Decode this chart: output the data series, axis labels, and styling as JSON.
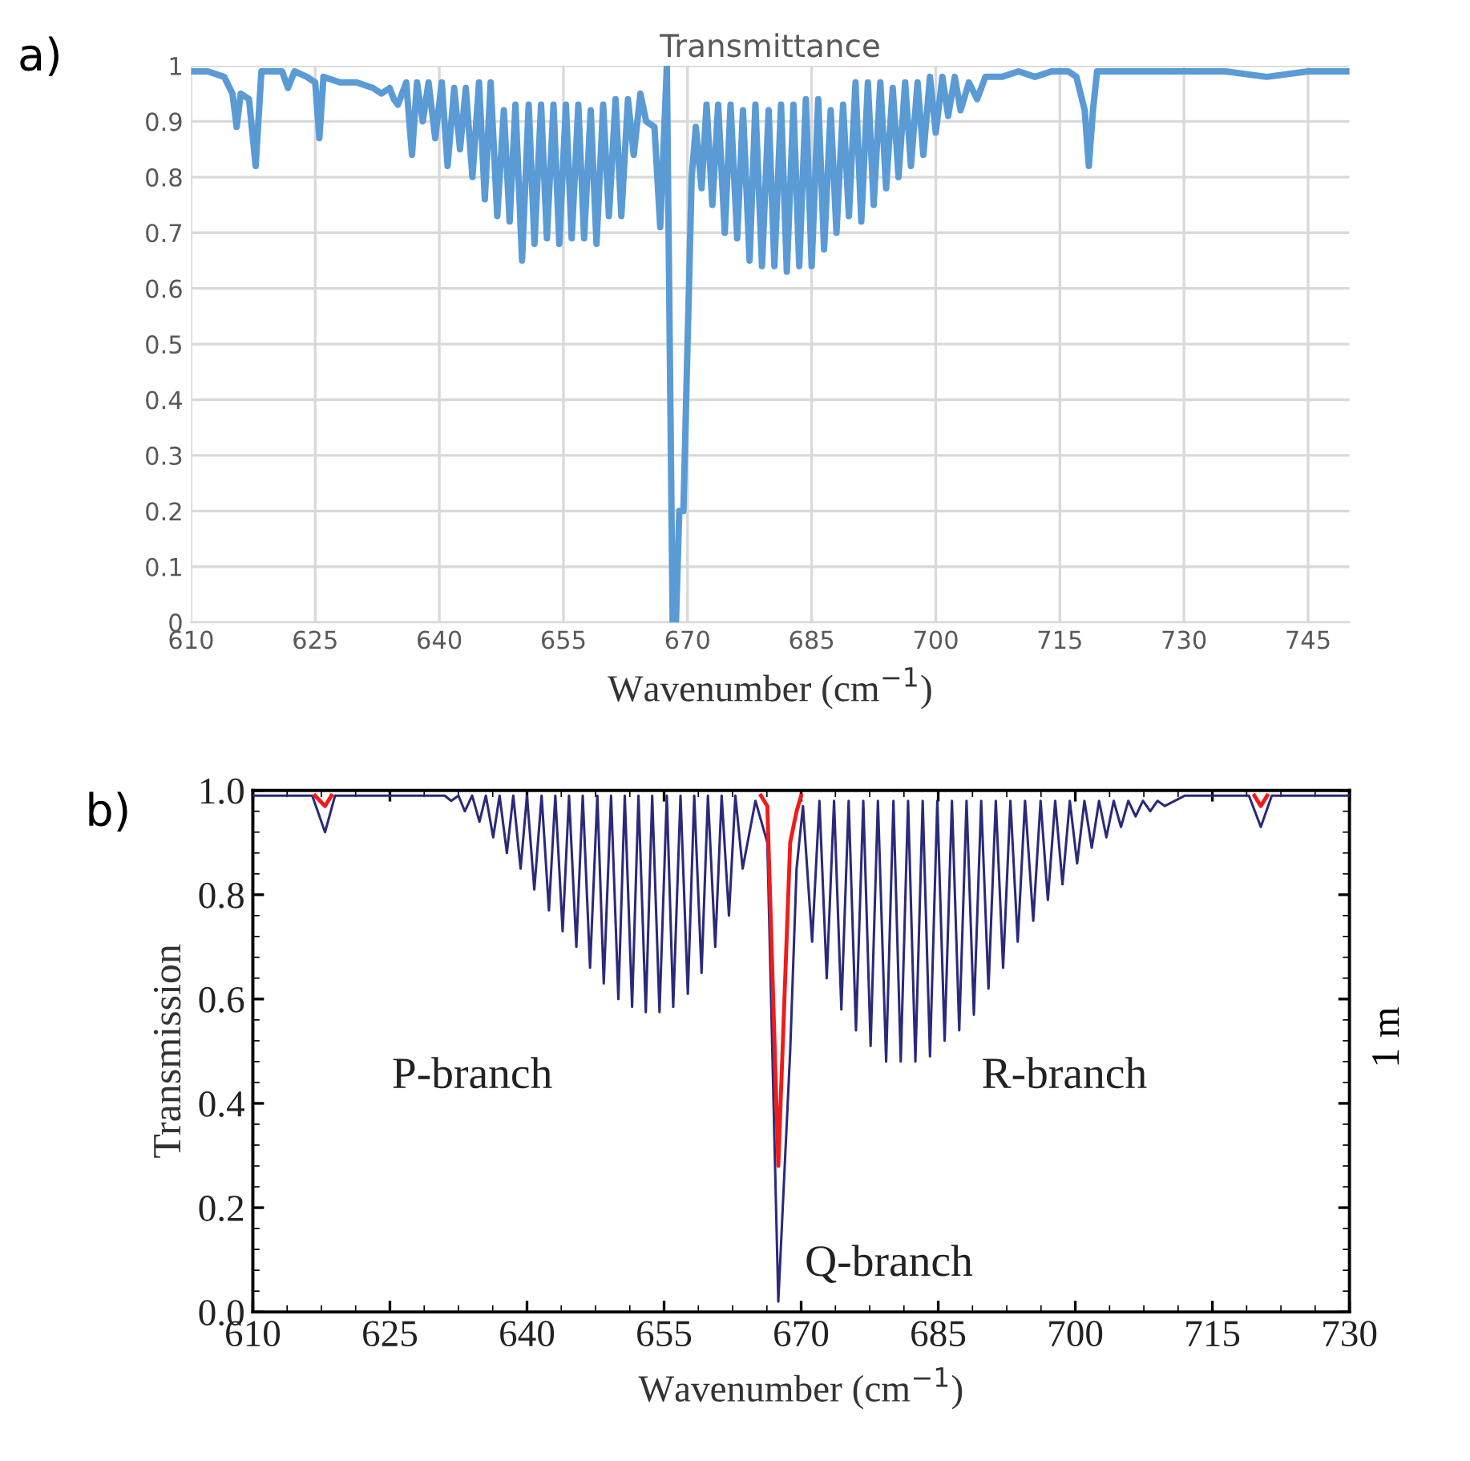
{
  "chart_data": [
    {
      "type": "line",
      "title": "Transmittance",
      "xlabel": "Wavenumber (cm$^{−1}$)",
      "annotations": [
        "a)"
      ],
      "xlim": [
        610,
        750
      ],
      "xticks": [
        610,
        625,
        640,
        655,
        670,
        685,
        700,
        715,
        730,
        745
      ],
      "ylim": [
        0,
        1
      ],
      "yticks": [
        0,
        0.1,
        0.2,
        0.3,
        0.4,
        0.5,
        0.6,
        0.7,
        0.8,
        0.9,
        1
      ],
      "grid": true,
      "series": [
        {
          "color": "#5b9bd5",
          "x": [
            610,
            612,
            614,
            615,
            615.5,
            616,
            617,
            617.8,
            618.5,
            620,
            621,
            621.7,
            622.5,
            624,
            625,
            625.5,
            626,
            628,
            630,
            632,
            633,
            634,
            634.5,
            635,
            636,
            636.7,
            637.3,
            638,
            638.7,
            639.5,
            640.3,
            641,
            641.8,
            642.5,
            643.2,
            644,
            644.8,
            645.5,
            646.2,
            647,
            647.8,
            648.5,
            649.2,
            650,
            650.8,
            651.5,
            652.3,
            653,
            653.8,
            654.5,
            655.3,
            656,
            656.8,
            657.5,
            658.3,
            659,
            659.8,
            660.5,
            661.3,
            662,
            662.8,
            663.5,
            664.3,
            665,
            666,
            666.7,
            667.5,
            668.2,
            668.6,
            669,
            669.5,
            670,
            670.5,
            671,
            671.7,
            672.3,
            673,
            673.7,
            674.5,
            675.2,
            676,
            676.7,
            677.5,
            678.2,
            679,
            679.8,
            680.5,
            681.3,
            682,
            682.8,
            683.5,
            684.3,
            685,
            685.8,
            686.5,
            687.3,
            688,
            688.8,
            689.5,
            690.3,
            691,
            691.8,
            692.5,
            693.3,
            694,
            694.8,
            695.5,
            696.3,
            697,
            697.8,
            698.5,
            699.3,
            700,
            700.8,
            701.5,
            702.3,
            703,
            704,
            705,
            706,
            708,
            710,
            712,
            714,
            716,
            717,
            718,
            718.5,
            719,
            719.5,
            722,
            725,
            728,
            730,
            735,
            740,
            745,
            750
          ],
          "values": [
            0.99,
            0.99,
            0.98,
            0.95,
            0.89,
            0.95,
            0.94,
            0.82,
            0.99,
            0.99,
            0.99,
            0.96,
            0.99,
            0.98,
            0.97,
            0.87,
            0.98,
            0.97,
            0.97,
            0.96,
            0.95,
            0.96,
            0.94,
            0.93,
            0.97,
            0.84,
            0.97,
            0.9,
            0.97,
            0.87,
            0.97,
            0.82,
            0.96,
            0.85,
            0.96,
            0.8,
            0.97,
            0.76,
            0.97,
            0.73,
            0.92,
            0.72,
            0.93,
            0.65,
            0.93,
            0.68,
            0.93,
            0.69,
            0.93,
            0.68,
            0.93,
            0.69,
            0.93,
            0.69,
            0.92,
            0.68,
            0.93,
            0.73,
            0.94,
            0.73,
            0.94,
            0.84,
            0.95,
            0.9,
            0.89,
            0.71,
            1,
            0,
            0,
            0.2,
            0.2,
            0.5,
            0.8,
            0.89,
            0.78,
            0.93,
            0.75,
            0.93,
            0.7,
            0.93,
            0.69,
            0.92,
            0.65,
            0.93,
            0.64,
            0.92,
            0.64,
            0.93,
            0.63,
            0.93,
            0.64,
            0.94,
            0.64,
            0.94,
            0.67,
            0.92,
            0.7,
            0.93,
            0.73,
            0.97,
            0.72,
            0.97,
            0.75,
            0.97,
            0.78,
            0.96,
            0.8,
            0.97,
            0.82,
            0.97,
            0.84,
            0.98,
            0.88,
            0.98,
            0.91,
            0.98,
            0.92,
            0.97,
            0.94,
            0.98,
            0.98,
            0.99,
            0.98,
            0.99,
            0.99,
            0.98,
            0.92,
            0.82,
            0.92,
            0.99,
            0.99,
            0.99,
            0.99,
            0.99,
            0.99,
            0.98,
            0.99,
            0.99
          ]
        }
      ]
    },
    {
      "type": "line",
      "xlabel": "Wavenumber (cm$^{−1}$)",
      "ylabel": "Transmission",
      "annotations": [
        "b)",
        "1 m",
        "P-branch",
        "R-branch",
        "Q-branch"
      ],
      "xlim": [
        610,
        730
      ],
      "xticks": [
        610,
        625,
        640,
        655,
        670,
        685,
        700,
        715,
        730
      ],
      "ylim": [
        0,
        1
      ],
      "yticks": [
        {
          "value": 0,
          "label": "0.0"
        },
        0.2,
        0.4,
        0.6,
        0.8,
        {
          "value": 1,
          "label": "1.0"
        }
      ],
      "grid": false,
      "x": [
        610,
        616.5,
        617.9,
        619,
        628,
        630.2,
        631,
        631.7,
        632.5,
        633.2,
        634,
        634.8,
        635.5,
        636.3,
        637,
        637.8,
        638.5,
        639.3,
        640,
        640.8,
        641.6,
        642.4,
        643.1,
        643.9,
        644.6,
        645.4,
        646.1,
        646.9,
        647.7,
        648.4,
        649.2,
        650,
        650.7,
        651.5,
        652.2,
        653,
        653.7,
        654.5,
        655.3,
        656,
        656.8,
        657.6,
        658.3,
        659.1,
        659.8,
        660.6,
        661.3,
        662.1,
        662.8,
        663.6,
        665,
        666.3,
        667.5,
        668.8,
        669.5,
        670.2,
        671.2,
        672,
        672.8,
        673.6,
        674.4,
        675.2,
        676,
        676.8,
        677.6,
        678.4,
        679.3,
        680.1,
        680.9,
        681.7,
        682.5,
        683.3,
        684.1,
        684.9,
        685.7,
        686.5,
        687.3,
        688.1,
        688.9,
        689.7,
        690.5,
        691.3,
        692.1,
        692.9,
        693.7,
        694.5,
        695.4,
        696.2,
        697,
        697.8,
        698.6,
        699.4,
        700.2,
        701,
        701.8,
        702.6,
        703.4,
        704.2,
        705,
        705.8,
        706.6,
        707.4,
        708.2,
        709,
        709.8,
        712,
        719,
        720.3,
        721.5,
        730
      ],
      "series": [
        {
          "color": "#ee1c1c",
          "x": [
            616.8,
            617.9,
            618.6,
            640,
            665.6,
            666.3,
            667.5,
            668.8,
            669.5,
            670,
            700,
            719.6,
            720.3,
            721
          ],
          "values": [
            0.99,
            0.97,
            0.99,
            null,
            0.99,
            0.97,
            0.28,
            0.9,
            0.96,
            0.99,
            null,
            0.99,
            0.97,
            0.99
          ]
        },
        {
          "color": "#2b2a7a",
          "values": [
            0.99,
            0.99,
            0.92,
            0.99,
            0.99,
            0.99,
            0.99,
            0.98,
            0.99,
            0.96,
            0.99,
            0.94,
            0.99,
            0.91,
            0.99,
            0.88,
            0.99,
            0.85,
            0.99,
            0.81,
            0.99,
            0.77,
            0.99,
            0.73,
            0.99,
            0.7,
            0.99,
            0.66,
            0.99,
            0.63,
            0.99,
            0.6,
            0.99,
            0.585,
            0.99,
            0.575,
            0.99,
            0.575,
            0.99,
            0.585,
            0.99,
            0.61,
            0.99,
            0.65,
            0.99,
            0.7,
            0.99,
            0.76,
            0.99,
            0.85,
            0.98,
            0.9,
            0.02,
            0.5,
            0.85,
            0.97,
            0.71,
            0.98,
            0.64,
            0.98,
            0.58,
            0.98,
            0.54,
            0.98,
            0.51,
            0.98,
            0.48,
            0.98,
            0.48,
            0.98,
            0.48,
            0.98,
            0.49,
            0.98,
            0.52,
            0.98,
            0.54,
            0.98,
            0.57,
            0.98,
            0.62,
            0.98,
            0.66,
            0.98,
            0.71,
            0.98,
            0.75,
            0.98,
            0.79,
            0.98,
            0.82,
            0.98,
            0.86,
            0.98,
            0.89,
            0.98,
            0.91,
            0.98,
            0.93,
            0.98,
            0.95,
            0.98,
            0.96,
            0.98,
            0.97,
            0.99,
            0.99,
            0.93,
            0.99,
            0.99
          ]
        }
      ]
    }
  ]
}
